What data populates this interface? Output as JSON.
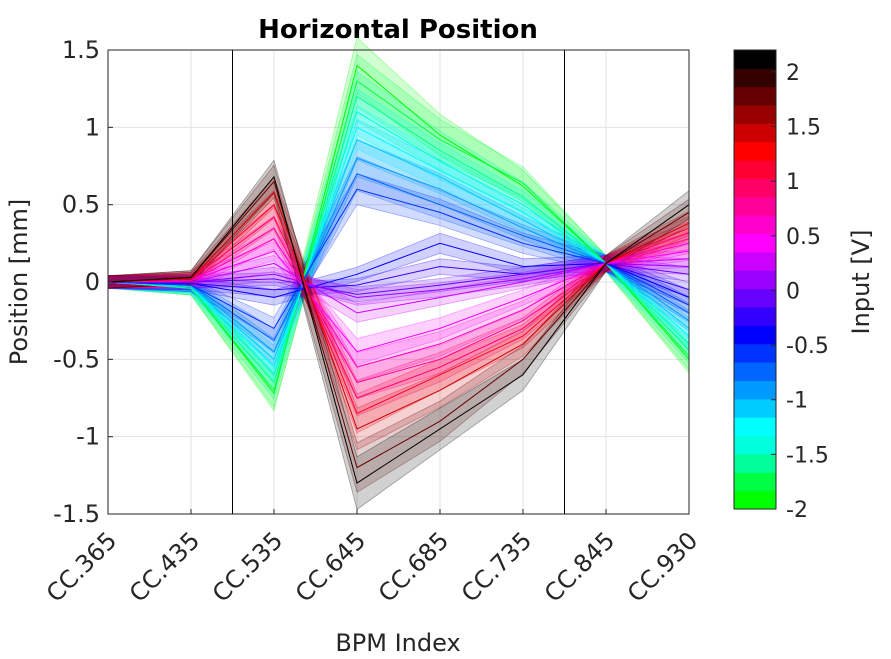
{
  "chart_data": {
    "type": "line",
    "title": "Horizontal Position",
    "xlabel": "BPM Index",
    "ylabel": "Position [mm]",
    "categories": [
      "CC.365",
      "CC.435",
      "CC.535",
      "CC.645",
      "CC.685",
      "CC.735",
      "CC.845",
      "CC.930"
    ],
    "ylim": [
      -1.5,
      1.5
    ],
    "yticks": [
      "-1.5",
      "-1",
      "-0.5",
      "0",
      "0.5",
      "1",
      "1.5"
    ],
    "grid": true,
    "vertical_markers_between": [
      [
        1,
        2
      ],
      [
        5,
        6
      ]
    ],
    "colorbar": {
      "label": "Input [V]",
      "range": [
        -2,
        2.2
      ],
      "ticks": [
        "-2",
        "-1.5",
        "-1",
        "-0.5",
        "0",
        "0.5",
        "1",
        "1.5",
        "2"
      ],
      "colors": [
        "#00ff00",
        "#00ff44",
        "#00ff99",
        "#00ffdd",
        "#00ffff",
        "#00ccff",
        "#0099ff",
        "#0066ff",
        "#0033ff",
        "#0000ff",
        "#3300ff",
        "#6600ff",
        "#9900ff",
        "#cc00ff",
        "#ff00ff",
        "#ff00cc",
        "#ff0099",
        "#ff0066",
        "#ff0033",
        "#ff0000",
        "#cc0000",
        "#990000",
        "#660000",
        "#330000",
        "#000000"
      ]
    },
    "series": [
      {
        "input": -2.0,
        "color": "#00ff00",
        "values": [
          0.0,
          -0.04,
          -0.72,
          1.4,
          0.95,
          0.62,
          0.12,
          -0.5
        ]
      },
      {
        "input": -1.8,
        "color": "#00ff44",
        "values": [
          0.0,
          -0.04,
          -0.7,
          1.3,
          0.92,
          0.64,
          0.12,
          -0.48
        ]
      },
      {
        "input": -1.6,
        "color": "#00ff99",
        "values": [
          0.0,
          -0.04,
          -0.65,
          1.2,
          0.85,
          0.55,
          0.12,
          -0.44
        ]
      },
      {
        "input": -1.4,
        "color": "#00ffdd",
        "values": [
          0.0,
          -0.03,
          -0.6,
          1.1,
          0.78,
          0.5,
          0.12,
          -0.4
        ]
      },
      {
        "input": -1.2,
        "color": "#00ffff",
        "values": [
          0.0,
          -0.03,
          -0.55,
          1.0,
          0.72,
          0.45,
          0.12,
          -0.35
        ]
      },
      {
        "input": -1.0,
        "color": "#00ccff",
        "values": [
          0.0,
          -0.03,
          -0.5,
          0.92,
          0.68,
          0.4,
          0.12,
          -0.3
        ]
      },
      {
        "input": -0.8,
        "color": "#0099ff",
        "values": [
          0.0,
          -0.02,
          -0.45,
          0.8,
          0.6,
          0.35,
          0.12,
          -0.25
        ]
      },
      {
        "input": -0.6,
        "color": "#0066ff",
        "values": [
          0.0,
          -0.02,
          -0.38,
          0.7,
          0.5,
          0.3,
          0.12,
          -0.2
        ]
      },
      {
        "input": -0.4,
        "color": "#0033ff",
        "values": [
          0.0,
          -0.02,
          -0.3,
          0.6,
          0.45,
          0.25,
          0.12,
          -0.15
        ]
      },
      {
        "input": -0.2,
        "color": "#0000ff",
        "values": [
          0.0,
          -0.01,
          -0.1,
          0.05,
          0.25,
          0.1,
          0.12,
          -0.1
        ]
      },
      {
        "input": 0.0,
        "color": "#3300ff",
        "values": [
          0.0,
          -0.01,
          -0.05,
          -0.02,
          0.1,
          0.05,
          0.12,
          -0.05
        ]
      },
      {
        "input": 0.2,
        "color": "#6600ff",
        "values": [
          0.0,
          0.0,
          0.02,
          -0.08,
          -0.02,
          0.05,
          0.12,
          0.05
        ]
      },
      {
        "input": 0.4,
        "color": "#9900ff",
        "values": [
          0.0,
          0.0,
          0.05,
          -0.1,
          -0.05,
          0.02,
          0.12,
          0.1
        ]
      },
      {
        "input": 0.6,
        "color": "#cc00ff",
        "values": [
          0.0,
          0.0,
          0.12,
          -0.2,
          -0.1,
          0.0,
          0.12,
          0.15
        ]
      },
      {
        "input": 0.8,
        "color": "#ff00ff",
        "values": [
          0.0,
          0.01,
          0.2,
          -0.45,
          -0.3,
          -0.1,
          0.12,
          0.2
        ]
      },
      {
        "input": 1.0,
        "color": "#ff00cc",
        "values": [
          0.0,
          0.01,
          0.28,
          -0.55,
          -0.4,
          -0.18,
          0.12,
          0.25
        ]
      },
      {
        "input": 1.2,
        "color": "#ff0099",
        "values": [
          0.0,
          0.01,
          0.35,
          -0.65,
          -0.5,
          -0.25,
          0.12,
          0.28
        ]
      },
      {
        "input": 1.4,
        "color": "#ff0066",
        "values": [
          0.0,
          0.02,
          0.42,
          -0.75,
          -0.55,
          -0.3,
          0.12,
          0.32
        ]
      },
      {
        "input": 1.6,
        "color": "#ff0033",
        "values": [
          0.0,
          0.02,
          0.5,
          -0.85,
          -0.6,
          -0.35,
          0.12,
          0.35
        ]
      },
      {
        "input": 1.8,
        "color": "#cc0000",
        "values": [
          0.0,
          0.02,
          0.58,
          -0.95,
          -0.7,
          -0.4,
          0.12,
          0.38
        ]
      },
      {
        "input": 2.0,
        "color": "#660000",
        "values": [
          0.0,
          0.03,
          0.65,
          -1.2,
          -0.9,
          -0.5,
          0.12,
          0.45
        ]
      },
      {
        "input": 2.2,
        "color": "#000000",
        "values": [
          0.0,
          0.03,
          0.68,
          -1.3,
          -0.95,
          -0.6,
          0.12,
          0.5
        ]
      }
    ]
  }
}
